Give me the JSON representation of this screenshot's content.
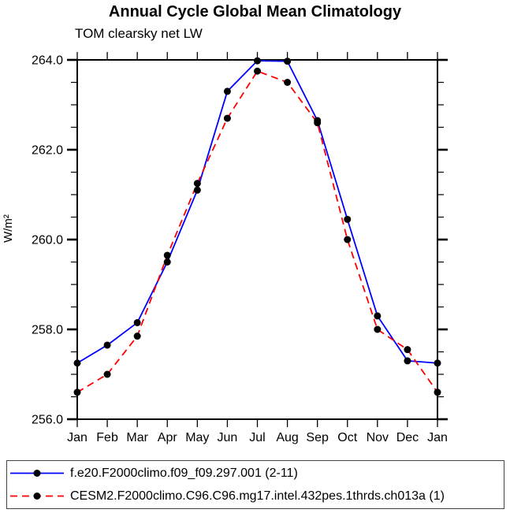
{
  "title": "Annual Cycle Global Mean Climatology",
  "subtitle": "TOM clearsky net LW",
  "y_axis_label": "W/m²",
  "chart_data": {
    "type": "line",
    "title": "Annual Cycle Global Mean Climatology",
    "subtitle": "TOM clearsky net LW",
    "ylabel": "W/m²",
    "xlabel": "",
    "categories": [
      "Jan",
      "Feb",
      "Mar",
      "Apr",
      "May",
      "Jun",
      "Jul",
      "Aug",
      "Sep",
      "Oct",
      "Nov",
      "Dec",
      "Jan"
    ],
    "ylim": [
      256.0,
      264.0
    ],
    "ytick_interval_major": 2.0,
    "ytick_interval_minor": 0.5,
    "ytick_labels": [
      "256.0",
      "258.0",
      "260.0",
      "262.0",
      "264.0"
    ],
    "grid": false,
    "legend_position": "bottom-box",
    "axis_color": "#000000",
    "marker_color": "#000000",
    "series": [
      {
        "name": "f.e20.F2000climo.f09_f09.297.001 (2-11)",
        "color": "#0000ff",
        "line_style": "solid",
        "marker": "filled-black-circle",
        "values": [
          257.25,
          257.65,
          258.15,
          259.5,
          261.1,
          263.3,
          263.98,
          263.97,
          262.65,
          260.45,
          258.3,
          257.3,
          257.25
        ]
      },
      {
        "name": "CESM2.F2000climo.C96.C96.mg17.intel.432pes.1thrds.ch013a (1)",
        "color": "#ff0000",
        "line_style": "dashed",
        "marker": "filled-black-circle",
        "values": [
          256.6,
          257.0,
          257.85,
          259.65,
          261.25,
          262.7,
          263.75,
          263.5,
          262.6,
          260.0,
          258.0,
          257.55,
          256.6
        ]
      }
    ]
  }
}
